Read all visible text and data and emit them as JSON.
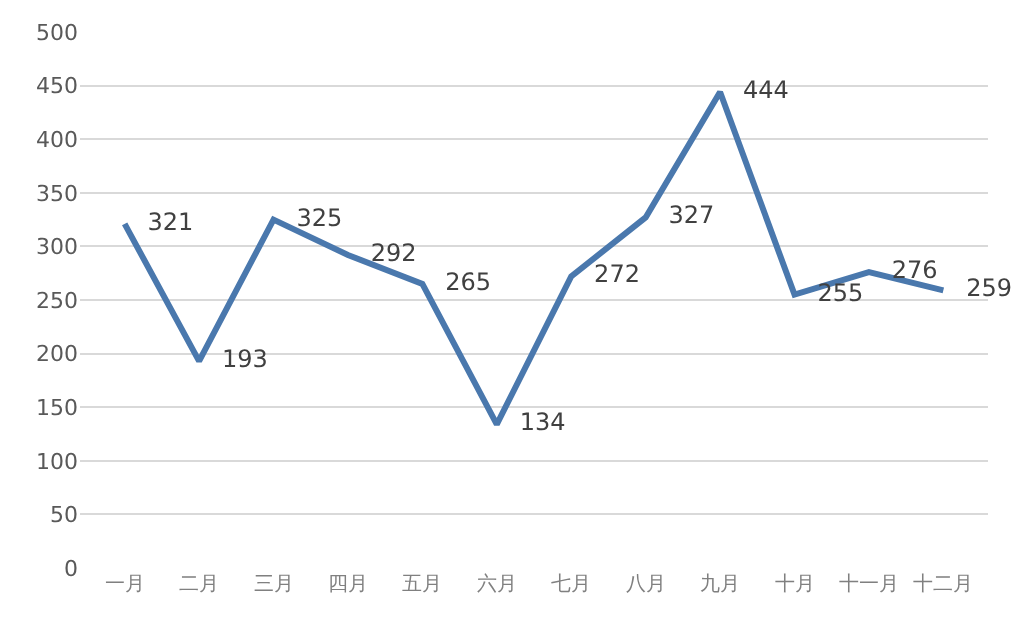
{
  "chart_data": {
    "type": "line",
    "categories": [
      "一月",
      "二月",
      "三月",
      "四月",
      "五月",
      "六月",
      "七月",
      "八月",
      "九月",
      "十月",
      "十一月",
      "十二月"
    ],
    "series": [
      {
        "color": "#4a78ad",
        "values": [
          321,
          193,
          325,
          292,
          265,
          134,
          272,
          327,
          444,
          255,
          276,
          259
        ]
      }
    ],
    "ylim": [
      0,
      500
    ],
    "yticks": [
      0,
      50,
      100,
      150,
      200,
      250,
      300,
      350,
      400,
      450,
      500
    ],
    "grid": "y",
    "legend": false,
    "marker": "none",
    "line_style": "solid",
    "data_labels": true
  }
}
